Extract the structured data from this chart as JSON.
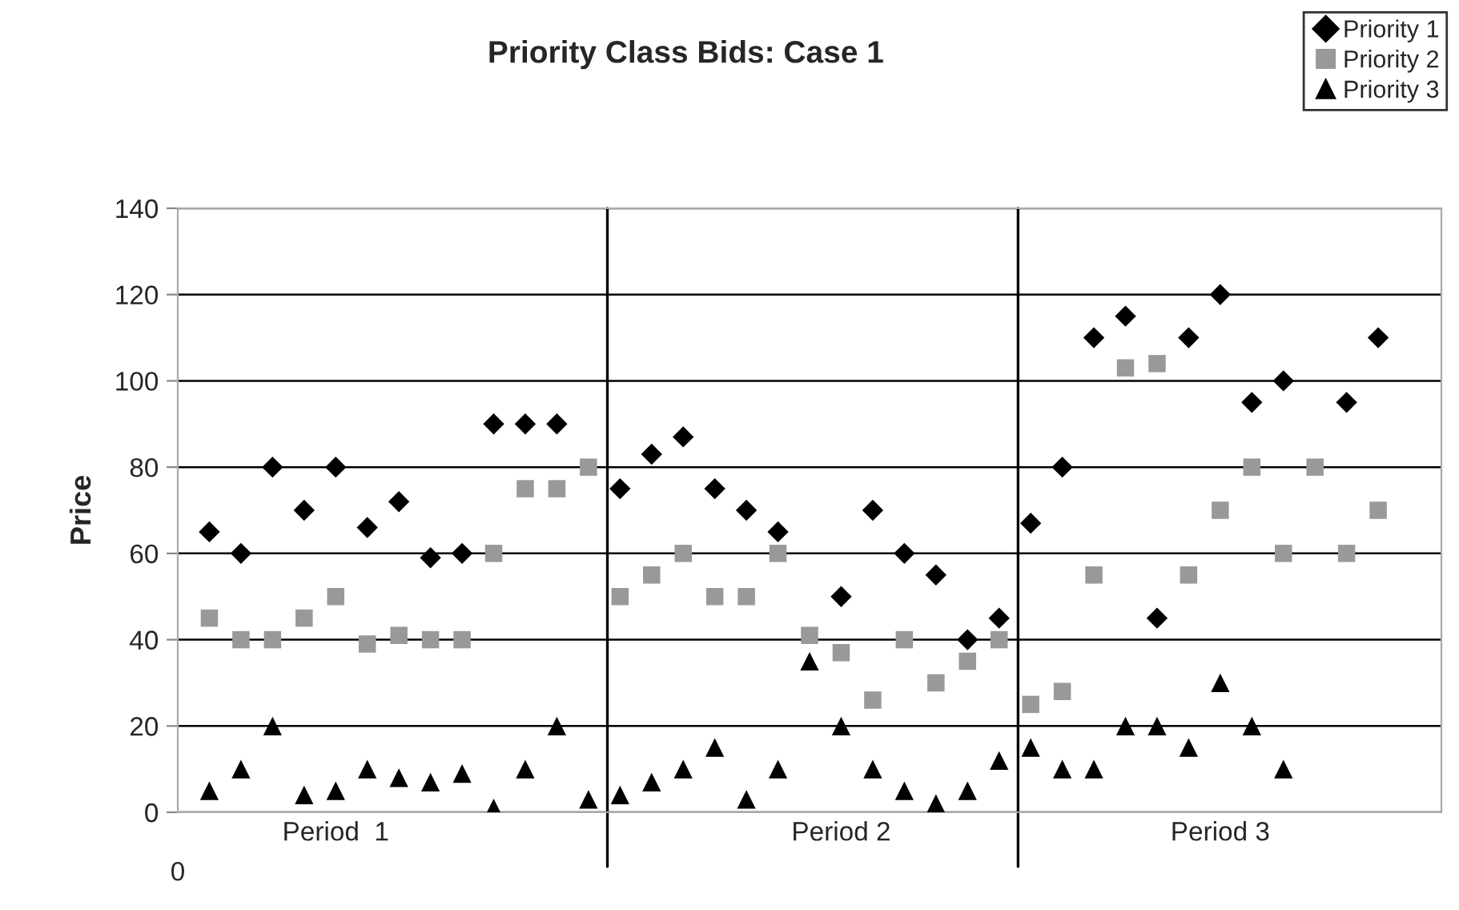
{
  "chart_data": {
    "type": "scatter",
    "title": "Priority Class Bids: Case 1",
    "ylabel": "Price",
    "annotations": [
      "0"
    ],
    "categories": [
      null,
      null,
      null,
      null,
      "Period  1",
      null,
      null,
      null,
      null,
      null,
      null,
      null,
      null,
      null,
      null,
      null,
      null,
      null,
      null,
      null,
      "Period 2",
      null,
      null,
      null,
      null,
      null,
      null,
      null,
      null,
      null,
      null,
      null,
      "Period 3",
      null,
      null,
      null,
      null,
      null
    ],
    "ylim": [
      0,
      140
    ],
    "yticks": [
      0,
      20,
      40,
      60,
      80,
      100,
      120,
      140
    ],
    "grid": "y",
    "legend": "top right",
    "series": [
      {
        "name": "Priority 1",
        "color": "#000000",
        "marker": "diamond",
        "values": [
          65,
          60,
          80,
          70,
          80,
          66,
          72,
          59,
          60,
          90,
          90,
          90,
          null,
          75,
          83,
          87,
          75,
          70,
          65,
          null,
          50,
          70,
          60,
          55,
          40,
          45,
          67,
          80,
          110,
          115,
          45,
          110,
          120,
          95,
          100,
          null,
          95,
          110
        ]
      },
      {
        "name": "Priority 2",
        "color": "#999999",
        "marker": "square",
        "values": [
          45,
          40,
          40,
          45,
          50,
          39,
          41,
          40,
          40,
          60,
          75,
          75,
          80,
          50,
          55,
          60,
          50,
          50,
          60,
          41,
          37,
          26,
          40,
          30,
          35,
          40,
          25,
          28,
          55,
          103,
          104,
          55,
          70,
          80,
          60,
          80,
          60,
          70
        ]
      },
      {
        "name": "Priority 3",
        "color": "#000000",
        "marker": "triangle",
        "values": [
          5,
          10,
          20,
          4,
          5,
          10,
          8,
          7,
          9,
          1,
          10,
          20,
          3,
          4,
          7,
          10,
          15,
          3,
          10,
          35,
          20,
          10,
          5,
          2,
          5,
          12,
          15,
          10,
          10,
          20,
          20,
          15,
          30,
          20,
          10,
          null,
          null,
          null
        ]
      }
    ]
  }
}
